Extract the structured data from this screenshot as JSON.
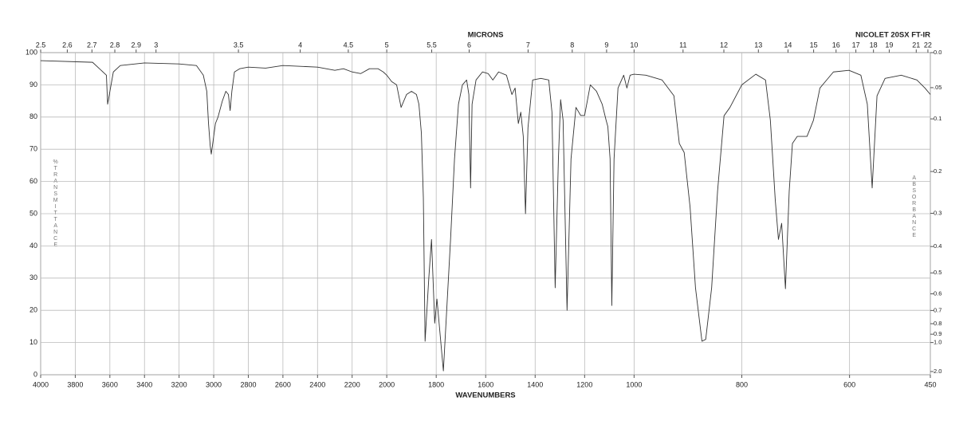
{
  "chart_data": {
    "type": "line",
    "title": "NICOLET 20SX FT-IR",
    "x_label": "WAVENUMBERS",
    "x2_label": "MICRONS",
    "y_label": "%TRANSMITTANCE",
    "y2_label": "ABSORBANCE",
    "color": "#333333",
    "grid": true,
    "xlim": [
      4000,
      450
    ],
    "xscale_breaks": [
      2000,
      1000
    ],
    "xticks": [
      4000,
      3800,
      3600,
      3400,
      3200,
      3000,
      2800,
      2600,
      2400,
      2200,
      2000,
      1800,
      1600,
      1400,
      1200,
      1000,
      800,
      600,
      450
    ],
    "x2ticks": [
      2.5,
      2.6,
      2.7,
      2.8,
      2.9,
      3,
      3.5,
      4,
      4.5,
      5,
      5.5,
      6,
      7,
      8,
      9,
      10,
      11,
      12,
      13,
      14,
      15,
      16,
      17,
      18,
      19,
      21,
      22
    ],
    "ylim": [
      0,
      100
    ],
    "yticks": [
      0,
      10,
      20,
      30,
      40,
      50,
      60,
      70,
      80,
      90,
      100
    ],
    "y2ticks": [
      {
        "value": 0,
        "label": "0.0"
      },
      {
        "value": 0.05,
        "label": ".05"
      },
      0.1,
      0.2,
      0.3,
      0.4,
      0.5,
      0.6,
      0.7,
      0.8,
      0.9,
      {
        "value": 1,
        "label": "1.0"
      },
      {
        "value": 2,
        "label": "2.0"
      }
    ],
    "x": [
      4000,
      3700,
      3620,
      3613,
      3580,
      3540,
      3400,
      3200,
      3100,
      3060,
      3040,
      3030,
      3020,
      3014,
      3005,
      2990,
      2975,
      2950,
      2930,
      2915,
      2905,
      2895,
      2880,
      2850,
      2800,
      2700,
      2600,
      2400,
      2300,
      2250,
      2200,
      2150,
      2100,
      2050,
      2020,
      2000,
      1980,
      1960,
      1942,
      1920,
      1900,
      1880,
      1870,
      1860,
      1852,
      1845,
      1830,
      1819,
      1806,
      1797,
      1771,
      1742,
      1726,
      1710,
      1694,
      1677,
      1668,
      1661,
      1655,
      1639,
      1613,
      1590,
      1571,
      1548,
      1516,
      1494,
      1481,
      1468,
      1458,
      1448,
      1439,
      1429,
      1410,
      1377,
      1345,
      1332,
      1319,
      1306,
      1297,
      1287,
      1271,
      1255,
      1235,
      1216,
      1200,
      1177,
      1152,
      1129,
      1113,
      1106,
      1097,
      1090,
      1081,
      1065,
      1042,
      1029,
      1016,
      1000,
      978,
      948,
      926,
      916,
      907,
      896,
      886,
      874,
      867,
      856,
      845,
      833,
      822,
      800,
      774,
      756,
      747,
      738,
      732,
      726,
      719,
      712,
      706,
      697,
      679,
      667,
      655,
      645,
      630,
      601,
      579,
      567,
      558,
      549,
      534,
      504,
      475,
      460,
      450
    ],
    "values": [
      97.5,
      97,
      93,
      84,
      94,
      96,
      96.8,
      96.5,
      96,
      93,
      88,
      78,
      71,
      68.5,
      72,
      78,
      80,
      85,
      88,
      87,
      82,
      88,
      94,
      95,
      95.5,
      95.2,
      96,
      95.5,
      94.5,
      95,
      94,
      93.5,
      95,
      95,
      94,
      93,
      91,
      90,
      83,
      87,
      88,
      87,
      84,
      75,
      55,
      10.4,
      30,
      42,
      16,
      23.5,
      1.2,
      42,
      67,
      84,
      90,
      91.5,
      87,
      58,
      84,
      91.5,
      94,
      93.5,
      91.5,
      94,
      93,
      87,
      89,
      78,
      81.5,
      74,
      50,
      76.7,
      91.5,
      92,
      91.5,
      81.5,
      27,
      67,
      85.4,
      79,
      20,
      67,
      83,
      80.5,
      80.5,
      90,
      88,
      84,
      79,
      77,
      67,
      21.5,
      67,
      89,
      93,
      89,
      93,
      93.3,
      93,
      91.5,
      86.6,
      71.8,
      69,
      52,
      27,
      10.4,
      11,
      27,
      57,
      80.4,
      83,
      90,
      93.3,
      91.5,
      79,
      54.5,
      42,
      47,
      26.7,
      57,
      71.8,
      74,
      74,
      79,
      89,
      91,
      94,
      94.5,
      93,
      84,
      58,
      86.6,
      92,
      93,
      91.5,
      89,
      87
    ]
  }
}
